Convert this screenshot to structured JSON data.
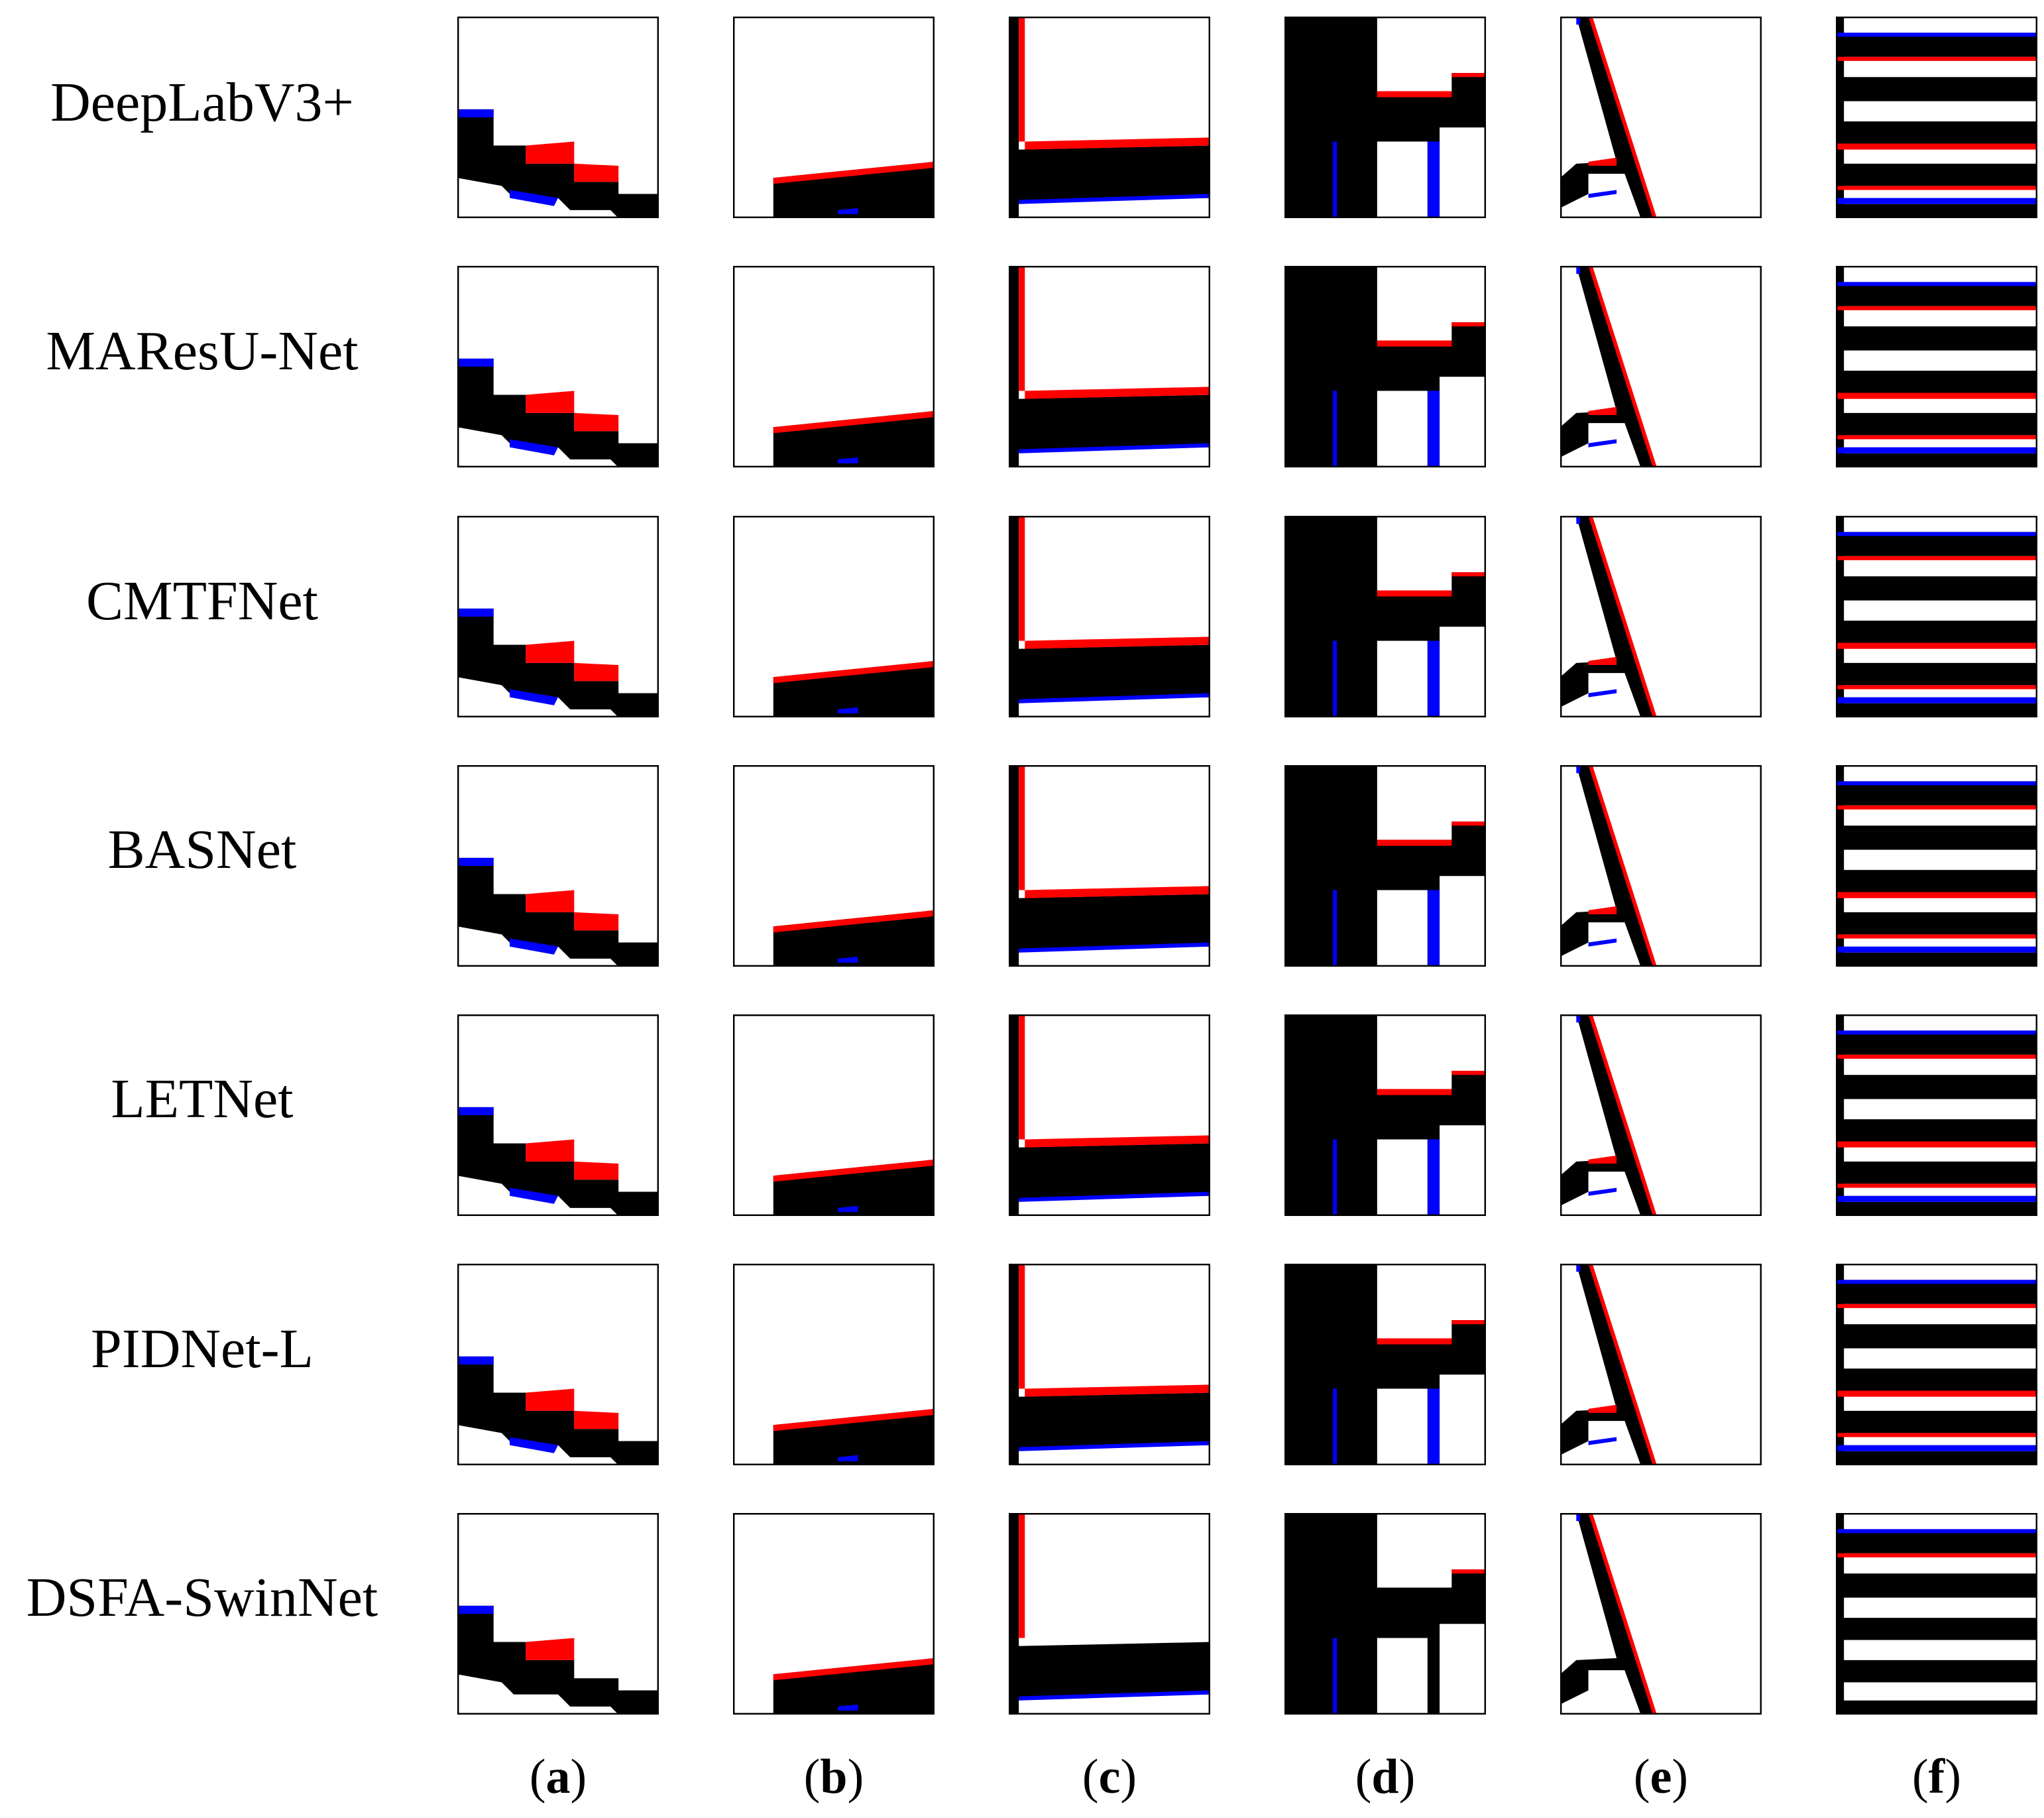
{
  "figure": {
    "rows": [
      {
        "label": "DeepLabV3+"
      },
      {
        "label": "MAResU-Net"
      },
      {
        "label": "CMTFNet"
      },
      {
        "label": "BASNet"
      },
      {
        "label": "LETNet"
      },
      {
        "label": "PIDNet-L"
      },
      {
        "label": "DSFA-SwinNet"
      }
    ],
    "columns": [
      {
        "open": "(",
        "letter": "a",
        "close": ")"
      },
      {
        "open": "(",
        "letter": "b",
        "close": ")"
      },
      {
        "open": "(",
        "letter": "c",
        "close": ")"
      },
      {
        "open": "(",
        "letter": "d",
        "close": ")"
      },
      {
        "open": "(",
        "letter": "e",
        "close": ")"
      },
      {
        "open": "(",
        "letter": "f",
        "close": ")"
      }
    ],
    "colors": {
      "background": "#ffffff",
      "object": "#000000",
      "false_positive": "#ff0000",
      "false_negative": "#0000ff",
      "frame": "#000000"
    }
  }
}
